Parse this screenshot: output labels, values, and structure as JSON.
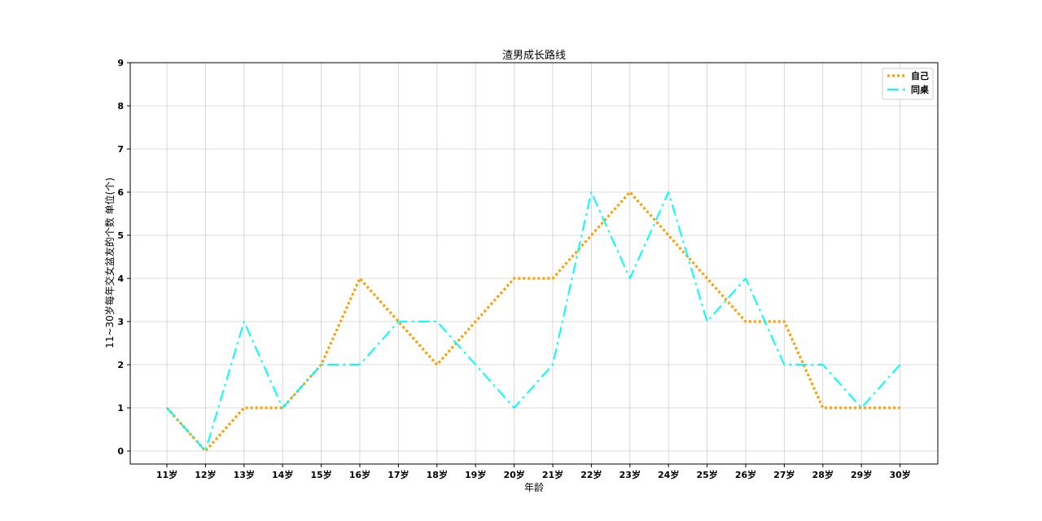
{
  "chart_data": {
    "type": "line",
    "title": "渣男成长路线",
    "xlabel": "年龄",
    "ylabel": "11~30岁每年交女盆友的个数  单位(个)",
    "categories": [
      "11岁",
      "12岁",
      "13岁",
      "14岁",
      "15岁",
      "16岁",
      "17岁",
      "18岁",
      "19岁",
      "20岁",
      "21岁",
      "22岁",
      "23岁",
      "24岁",
      "25岁",
      "26岁",
      "27岁",
      "28岁",
      "29岁",
      "30岁"
    ],
    "y_ticks": [
      "0",
      "1",
      "2",
      "3",
      "4",
      "5",
      "6",
      "7",
      "8",
      "9"
    ],
    "ylim": [
      0,
      9
    ],
    "grid": true,
    "legend_position": "top-right",
    "series": [
      {
        "name": "自己",
        "color": "#ff9f00",
        "style": "dotted",
        "values": [
          1,
          0,
          1,
          1,
          2,
          4,
          3,
          2,
          3,
          4,
          4,
          5,
          6,
          5,
          4,
          3,
          3,
          1,
          1,
          1
        ]
      },
      {
        "name": "同桌",
        "color": "#00ffff",
        "style": "dash-dot",
        "values": [
          1,
          0,
          3,
          1,
          2,
          2,
          3,
          3,
          2,
          1,
          2,
          6,
          4,
          6,
          3,
          4,
          2,
          2,
          1,
          2
        ]
      }
    ]
  }
}
